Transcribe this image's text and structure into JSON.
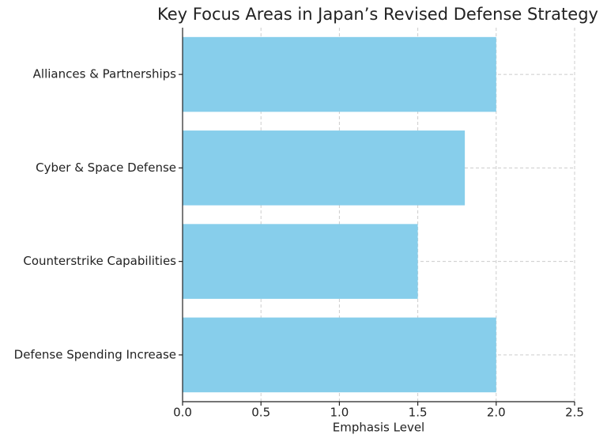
{
  "chart_data": {
    "type": "barh",
    "title": "Key Focus Areas in Japan’s Revised Defense Strategy",
    "xlabel": "Emphasis Level",
    "categories": [
      "Alliances & Partnerships",
      "Cyber & Space Defense",
      "Counterstrike Capabilities",
      "Defense Spending Increase"
    ],
    "values": [
      2.0,
      1.8,
      1.5,
      2.0
    ],
    "color": "#87ceeb",
    "xlim": [
      0,
      2.5
    ],
    "xticks": [
      {
        "value": 0,
        "label": "0.0"
      },
      0.5,
      {
        "value": 1,
        "label": "1.0"
      },
      1.5,
      {
        "value": 2,
        "label": "2.0"
      },
      2.5
    ],
    "grid": true
  }
}
